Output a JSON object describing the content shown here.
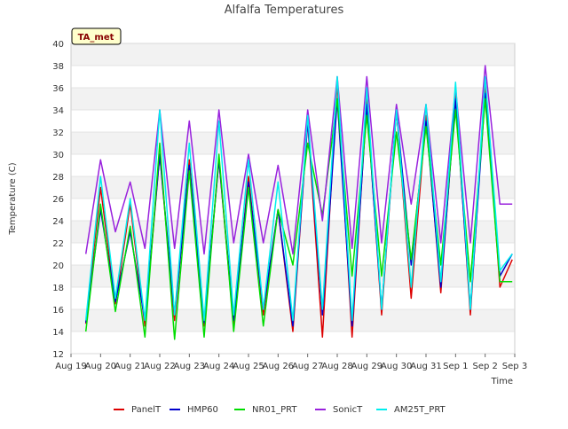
{
  "chart_data": {
    "type": "line",
    "title": "Alfalfa Temperatures",
    "xlabel": "Time",
    "ylabel": "Temperature (C)",
    "station_label": "TA_met",
    "ylim": [
      12,
      40
    ],
    "yticks": [
      12,
      14,
      16,
      18,
      20,
      22,
      24,
      26,
      28,
      30,
      32,
      34,
      36,
      38,
      40
    ],
    "xlim": [
      "2023-08-19",
      "2023-09-03"
    ],
    "xticks": [
      "Aug 19",
      "Aug 20",
      "Aug 21",
      "Aug 22",
      "Aug 23",
      "Aug 24",
      "Aug 25",
      "Aug 26",
      "Aug 27",
      "Aug 28",
      "Aug 29",
      "Aug 30",
      "Aug 31",
      "Sep 1",
      "Sep 2",
      "Sep 3"
    ],
    "grid": true,
    "legend_position": "bottom",
    "x_dates": [
      "2023-08-19T12:00",
      "2023-08-20T00:00",
      "2023-08-20T12:00",
      "2023-08-21T00:00",
      "2023-08-21T12:00",
      "2023-08-22T00:00",
      "2023-08-22T12:00",
      "2023-08-23T00:00",
      "2023-08-23T12:00",
      "2023-08-24T00:00",
      "2023-08-24T12:00",
      "2023-08-25T00:00",
      "2023-08-25T12:00",
      "2023-08-26T00:00",
      "2023-08-26T12:00",
      "2023-08-27T00:00",
      "2023-08-27T12:00",
      "2023-08-28T00:00",
      "2023-08-28T12:00",
      "2023-08-29T00:00",
      "2023-08-29T12:00",
      "2023-08-30T00:00",
      "2023-08-30T12:00",
      "2023-08-31T00:00",
      "2023-08-31T12:00",
      "2023-09-01T00:00",
      "2023-09-01T12:00",
      "2023-09-02T00:00",
      "2023-09-02T12:00",
      "2023-09-02T22:00"
    ],
    "series": [
      {
        "name": "PanelT",
        "color": "#dd0000",
        "values": [
          14.7,
          27.0,
          16.5,
          25.5,
          14.5,
          30.0,
          15.0,
          29.5,
          14.5,
          29.5,
          14.5,
          28.0,
          15.5,
          25.0,
          14.0,
          33.0,
          13.5,
          36.5,
          13.5,
          35.0,
          15.5,
          34.0,
          17.0,
          33.5,
          17.5,
          35.5,
          15.5,
          36.5,
          18.0,
          20.5
        ]
      },
      {
        "name": "HMP60",
        "color": "#0000cc",
        "values": [
          14.8,
          25.0,
          16.7,
          23.0,
          15.0,
          30.0,
          15.5,
          29.0,
          14.8,
          29.5,
          15.0,
          27.5,
          16.0,
          25.0,
          14.5,
          33.0,
          15.5,
          35.0,
          14.5,
          34.5,
          16.0,
          34.0,
          20.0,
          33.0,
          18.0,
          35.0,
          16.0,
          35.5,
          19.0,
          21.0
        ]
      },
      {
        "name": "NR01_PRT",
        "color": "#00dd00",
        "values": [
          14.0,
          25.5,
          15.8,
          23.5,
          13.5,
          31.0,
          13.3,
          28.5,
          13.5,
          30.0,
          14.0,
          27.0,
          14.5,
          25.0,
          20.0,
          31.0,
          24.5,
          35.0,
          19.0,
          33.5,
          19.0,
          32.0,
          20.5,
          32.5,
          20.0,
          34.0,
          18.5,
          35.0,
          18.5,
          18.5
        ]
      },
      {
        "name": "SonicT",
        "color": "#9922dd",
        "values": [
          21.0,
          29.5,
          23.0,
          27.5,
          21.5,
          34.0,
          21.5,
          33.0,
          21.0,
          34.0,
          22.0,
          30.0,
          22.0,
          29.0,
          21.0,
          34.0,
          24.0,
          37.0,
          21.5,
          37.0,
          22.0,
          34.5,
          25.5,
          34.5,
          22.0,
          36.0,
          22.0,
          38.0,
          25.5,
          25.5
        ]
      },
      {
        "name": "AM25T_PRT",
        "color": "#00eeee",
        "values": [
          15.0,
          28.0,
          17.0,
          26.0,
          15.0,
          34.0,
          15.5,
          31.0,
          15.0,
          33.0,
          15.5,
          29.5,
          16.0,
          27.5,
          15.0,
          33.5,
          16.0,
          37.0,
          15.0,
          36.0,
          16.0,
          34.0,
          18.0,
          34.5,
          18.5,
          36.5,
          16.0,
          37.0,
          19.5,
          21.0
        ]
      }
    ]
  }
}
